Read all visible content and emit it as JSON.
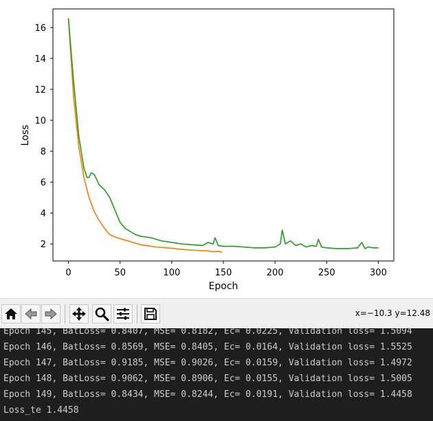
{
  "chart_data": {
    "type": "line",
    "xlabel": "Epoch",
    "ylabel": "Loss",
    "xlim": [
      -15,
      315
    ],
    "ylim": [
      0.9,
      17.2
    ],
    "xticks": [
      0,
      50,
      100,
      150,
      200,
      250,
      300
    ],
    "yticks": [
      2,
      4,
      6,
      8,
      10,
      12,
      14,
      16
    ],
    "grid": false,
    "series": [
      {
        "color": "#ff7f0e",
        "x": [
          0,
          5,
          10,
          15,
          20,
          25,
          30,
          35,
          40,
          45,
          50,
          55,
          60,
          65,
          70,
          75,
          80,
          85,
          90,
          95,
          100,
          105,
          110,
          115,
          120,
          125,
          130,
          135,
          140,
          145,
          149
        ],
        "y": [
          16.6,
          11.5,
          8.3,
          6.3,
          5.0,
          4.1,
          3.5,
          3.0,
          2.6,
          2.45,
          2.35,
          2.25,
          2.15,
          2.05,
          1.95,
          1.9,
          1.85,
          1.8,
          1.78,
          1.75,
          1.72,
          1.68,
          1.65,
          1.62,
          1.6,
          1.58,
          1.56,
          1.55,
          1.5,
          1.52,
          1.45
        ]
      },
      {
        "color": "#2ca02c",
        "x": [
          0,
          5,
          10,
          15,
          18,
          20,
          22,
          25,
          30,
          35,
          40,
          45,
          50,
          55,
          60,
          65,
          70,
          80,
          90,
          100,
          110,
          120,
          130,
          135,
          140,
          142,
          145,
          150,
          160,
          170,
          180,
          190,
          200,
          205,
          207,
          210,
          215,
          220,
          225,
          230,
          235,
          240,
          242,
          245,
          250,
          260,
          270,
          280,
          284,
          287,
          290,
          295,
          300
        ],
        "y": [
          16.6,
          12.5,
          9.0,
          6.9,
          6.3,
          6.3,
          6.6,
          6.5,
          5.8,
          5.5,
          5.0,
          4.2,
          3.4,
          3.0,
          2.8,
          2.6,
          2.5,
          2.4,
          2.2,
          2.1,
          2.0,
          1.95,
          1.9,
          2.1,
          2.0,
          2.4,
          1.9,
          1.85,
          1.85,
          1.8,
          1.75,
          1.75,
          1.8,
          2.0,
          2.9,
          2.0,
          2.2,
          1.9,
          2.0,
          1.8,
          1.9,
          1.85,
          2.3,
          1.8,
          1.75,
          1.7,
          1.7,
          1.75,
          2.1,
          1.7,
          1.8,
          1.75,
          1.75
        ]
      }
    ]
  },
  "toolbar": {
    "buttons": [
      {
        "name": "home-icon"
      },
      {
        "name": "back-arrow-icon"
      },
      {
        "name": "forward-arrow-icon"
      },
      {
        "name": "pan-move-icon"
      },
      {
        "name": "zoom-magnifier-icon"
      },
      {
        "name": "configure-subplots-icon"
      },
      {
        "name": "save-floppy-icon"
      }
    ],
    "coords": "x=−10.3 y=12.48"
  },
  "console": {
    "lines": [
      "Epoch 145, BatLoss= 0.8407, MSE= 0.8182, Ec= 0.0225, Validation loss= 1.5094",
      "Epoch 146, BatLoss= 0.8569, MSE= 0.8405, Ec= 0.0164, Validation loss= 1.5525",
      "Epoch 147, BatLoss= 0.9185, MSE= 0.9026, Ec= 0.0159, Validation loss= 1.4972",
      "Epoch 148, BatLoss= 0.9062, MSE= 0.8906, Ec= 0.0155, Validation loss= 1.5005",
      "Epoch 149, BatLoss= 0.8434, MSE= 0.8244, Ec= 0.0191, Validation loss= 1.4458",
      "Loss_te 1.4458"
    ]
  }
}
